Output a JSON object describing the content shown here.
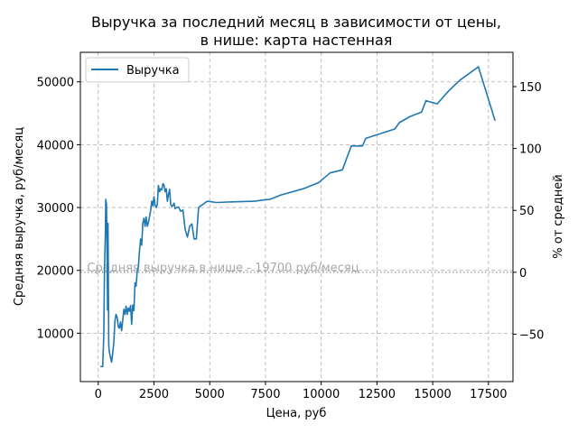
{
  "chart_data": {
    "type": "line",
    "title_lines": [
      "Выручка за последний месяц в зависимости от цены,",
      "в нише: карта настенная"
    ],
    "xlabel": "Цена, руб",
    "ylabel": "Средняя выручка, руб/месяц",
    "y2label": "% от средней",
    "xlim": [
      -800,
      18600
    ],
    "ylim": [
      2300,
      54700
    ],
    "y2lim": [
      -88.3,
      177.7
    ],
    "xticks": [
      0,
      2500,
      5000,
      7500,
      10000,
      12500,
      15000,
      17500
    ],
    "yticks": [
      10000,
      20000,
      30000,
      40000,
      50000
    ],
    "y2ticks": [
      -50,
      0,
      50,
      100,
      150
    ],
    "grid": true,
    "grid_style": "dashed",
    "legend_position": "upper-left",
    "series": [
      {
        "name": "Выручка",
        "color": "#1f77b4",
        "x": [
          100,
          200,
          250,
          280,
          320,
          340,
          370,
          400,
          420,
          440,
          470,
          500,
          550,
          600,
          650,
          700,
          750,
          800,
          850,
          900,
          950,
          1000,
          1050,
          1100,
          1150,
          1200,
          1250,
          1300,
          1350,
          1400,
          1450,
          1500,
          1550,
          1600,
          1650,
          1700,
          1750,
          1800,
          1850,
          1900,
          1950,
          2000,
          2050,
          2100,
          2150,
          2200,
          2250,
          2300,
          2350,
          2400,
          2450,
          2500,
          2550,
          2600,
          2650,
          2700,
          2750,
          2800,
          2850,
          2900,
          2950,
          3000,
          3050,
          3100,
          3150,
          3200,
          3250,
          3300,
          3350,
          3400,
          3450,
          3500,
          3600,
          3700,
          3800,
          3900,
          4000,
          4100,
          4200,
          4300,
          4400,
          4500,
          4600,
          4700,
          4800,
          4900,
          5300,
          6000,
          7000,
          7400,
          7700,
          8200,
          9200,
          9900,
          10400,
          10950,
          11350,
          11850,
          12000,
          13300,
          13500,
          14000,
          14500,
          14700,
          15200,
          15700,
          16200,
          17050,
          17800
        ],
        "y": [
          4700,
          4700,
          9500,
          20000,
          26000,
          31300,
          30500,
          22000,
          13700,
          27500,
          8200,
          7000,
          6200,
          5400,
          6900,
          8500,
          12000,
          13000,
          12500,
          11000,
          10800,
          11800,
          10400,
          12000,
          13800,
          13000,
          14300,
          13000,
          14000,
          13500,
          14400,
          11400,
          14500,
          13600,
          18000,
          17500,
          20000,
          20500,
          23000,
          25000,
          24000,
          27500,
          28300,
          27000,
          28500,
          27000,
          27600,
          28500,
          29500,
          31000,
          30300,
          31700,
          30400,
          30000,
          30500,
          33500,
          32500,
          33000,
          32800,
          33800,
          33600,
          32500,
          33000,
          31000,
          32000,
          32900,
          30500,
          30200,
          30300,
          30700,
          29800,
          30000,
          30100,
          29400,
          29600,
          26500,
          25300,
          27000,
          27400,
          25000,
          25000,
          30000,
          30300,
          30500,
          30800,
          31000,
          30800,
          30900,
          31000,
          31200,
          31300,
          32000,
          33000,
          34000,
          35500,
          36000,
          39800,
          39800,
          41000,
          42500,
          43500,
          44500,
          45200,
          47000,
          46500,
          48500,
          50200,
          52400,
          43800
        ]
      }
    ],
    "reference_line": {
      "y": 19700,
      "label": "Средняя выручка в нише - 19700 руб/месяц",
      "color": "#aaaaaa"
    }
  }
}
